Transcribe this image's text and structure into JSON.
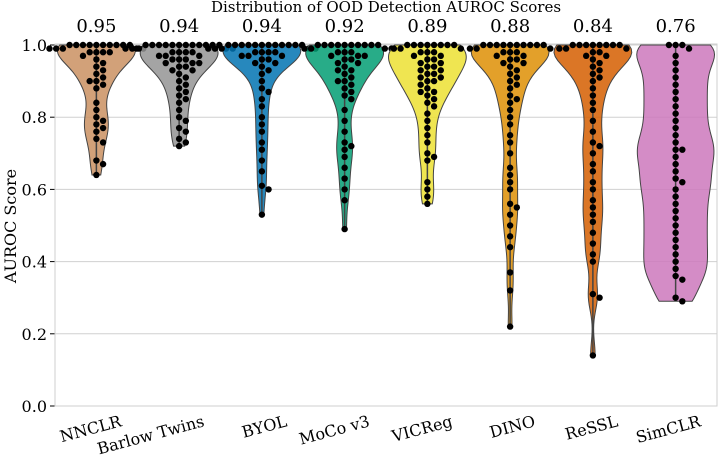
{
  "chart_data": {
    "type": "violin",
    "title": "Distribution of OOD Detection AUROC Scores",
    "ylabel": "AUROC Score",
    "categories": [
      "NNCLR",
      "Barlow Twins",
      "BYOL",
      "MoCo v3",
      "VICReg",
      "DINO",
      "ReSSL",
      "SimCLR"
    ],
    "colors": [
      "#ca9161",
      "#949494",
      "#0173b2",
      "#029e73",
      "#ece133",
      "#de8f05",
      "#d55e00",
      "#cc78bc"
    ],
    "means": [
      0.95,
      0.94,
      0.94,
      0.92,
      0.89,
      0.88,
      0.84,
      0.76
    ],
    "points": [
      [
        1.0,
        1.0,
        1.0,
        1.0,
        1.0,
        1.0,
        1.0,
        1.0,
        1.0,
        1.0,
        0.99,
        0.99,
        0.99,
        0.99,
        0.99,
        0.98,
        0.98,
        0.98,
        0.98,
        0.97,
        0.96,
        0.95,
        0.94,
        0.93,
        0.92,
        0.91,
        0.9,
        0.9,
        0.89,
        0.88,
        0.84,
        0.82,
        0.8,
        0.79,
        0.78,
        0.77,
        0.76,
        0.74,
        0.73,
        0.68,
        0.67,
        0.64
      ],
      [
        1.0,
        1.0,
        1.0,
        1.0,
        1.0,
        1.0,
        1.0,
        1.0,
        1.0,
        1.0,
        1.0,
        1.0,
        0.99,
        0.99,
        0.99,
        0.99,
        0.99,
        0.98,
        0.98,
        0.98,
        0.98,
        0.97,
        0.97,
        0.97,
        0.96,
        0.96,
        0.96,
        0.95,
        0.95,
        0.95,
        0.94,
        0.94,
        0.93,
        0.93,
        0.92,
        0.91,
        0.9,
        0.89,
        0.88,
        0.87,
        0.86,
        0.85,
        0.84,
        0.82,
        0.8,
        0.79,
        0.77,
        0.76,
        0.74,
        0.73,
        0.72
      ],
      [
        1.0,
        1.0,
        1.0,
        1.0,
        1.0,
        1.0,
        1.0,
        1.0,
        1.0,
        1.0,
        1.0,
        1.0,
        0.99,
        0.99,
        0.99,
        0.99,
        0.99,
        0.98,
        0.98,
        0.98,
        0.98,
        0.97,
        0.97,
        0.97,
        0.96,
        0.96,
        0.95,
        0.95,
        0.94,
        0.93,
        0.92,
        0.9,
        0.88,
        0.87,
        0.85,
        0.83,
        0.8,
        0.78,
        0.76,
        0.73,
        0.71,
        0.68,
        0.65,
        0.61,
        0.6,
        0.53
      ],
      [
        1.0,
        1.0,
        1.0,
        1.0,
        1.0,
        1.0,
        1.0,
        1.0,
        1.0,
        1.0,
        0.99,
        0.99,
        0.99,
        0.99,
        0.98,
        0.98,
        0.98,
        0.97,
        0.97,
        0.97,
        0.96,
        0.96,
        0.95,
        0.95,
        0.94,
        0.93,
        0.93,
        0.92,
        0.91,
        0.9,
        0.9,
        0.89,
        0.88,
        0.87,
        0.86,
        0.85,
        0.82,
        0.79,
        0.76,
        0.73,
        0.72,
        0.71,
        0.69,
        0.66,
        0.63,
        0.6,
        0.57,
        0.49
      ],
      [
        1.0,
        1.0,
        1.0,
        1.0,
        1.0,
        1.0,
        1.0,
        1.0,
        0.99,
        0.99,
        0.99,
        0.98,
        0.98,
        0.98,
        0.97,
        0.97,
        0.96,
        0.96,
        0.95,
        0.95,
        0.94,
        0.94,
        0.93,
        0.93,
        0.92,
        0.92,
        0.91,
        0.91,
        0.9,
        0.9,
        0.89,
        0.88,
        0.87,
        0.87,
        0.86,
        0.85,
        0.84,
        0.83,
        0.81,
        0.79,
        0.77,
        0.75,
        0.73,
        0.7,
        0.69,
        0.68,
        0.62,
        0.6,
        0.58,
        0.56
      ],
      [
        1.0,
        1.0,
        1.0,
        1.0,
        1.0,
        1.0,
        1.0,
        1.0,
        1.0,
        1.0,
        0.99,
        0.99,
        0.99,
        0.98,
        0.98,
        0.98,
        0.97,
        0.97,
        0.96,
        0.96,
        0.95,
        0.95,
        0.94,
        0.93,
        0.92,
        0.91,
        0.9,
        0.89,
        0.88,
        0.86,
        0.85,
        0.84,
        0.82,
        0.8,
        0.78,
        0.75,
        0.73,
        0.7,
        0.66,
        0.64,
        0.62,
        0.6,
        0.56,
        0.55,
        0.53,
        0.5,
        0.47,
        0.44,
        0.37,
        0.32,
        0.22
      ],
      [
        1.0,
        1.0,
        1.0,
        1.0,
        1.0,
        1.0,
        1.0,
        1.0,
        0.99,
        0.99,
        0.99,
        0.98,
        0.98,
        0.97,
        0.97,
        0.96,
        0.95,
        0.94,
        0.93,
        0.92,
        0.91,
        0.9,
        0.88,
        0.86,
        0.84,
        0.82,
        0.79,
        0.76,
        0.73,
        0.72,
        0.7,
        0.67,
        0.65,
        0.62,
        0.6,
        0.57,
        0.55,
        0.53,
        0.51,
        0.48,
        0.45,
        0.42,
        0.4,
        0.31,
        0.3,
        0.14
      ],
      [
        1.0,
        1.0,
        1.0,
        0.99,
        0.97,
        0.95,
        0.93,
        0.91,
        0.89,
        0.87,
        0.85,
        0.83,
        0.81,
        0.79,
        0.77,
        0.75,
        0.73,
        0.71,
        0.71,
        0.69,
        0.67,
        0.65,
        0.63,
        0.62,
        0.6,
        0.58,
        0.56,
        0.54,
        0.52,
        0.5,
        0.48,
        0.46,
        0.44,
        0.42,
        0.4,
        0.38,
        0.36,
        0.35,
        0.3,
        0.29
      ]
    ],
    "ylim": [
      0,
      1
    ],
    "yticks": [
      {
        "value": 0,
        "label": "0.0"
      },
      {
        "value": 0.2,
        "label": "0.2"
      },
      {
        "value": 0.4,
        "label": "0.4"
      },
      {
        "value": 0.6,
        "label": "0.6"
      },
      {
        "value": 0.8,
        "label": "0.8"
      },
      {
        "value": 1,
        "label": "1.0"
      }
    ],
    "grid": true
  }
}
